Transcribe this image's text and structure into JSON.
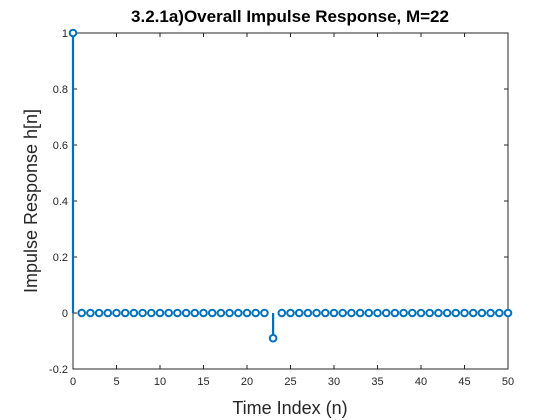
{
  "chart_data": {
    "type": "stem",
    "title": "3.2.1a)Overall Impulse Response, M=22",
    "xlabel": "Time Index (n)",
    "ylabel": "Impulse Response h[n]",
    "xlim": [
      0,
      50
    ],
    "ylim": [
      -0.2,
      1
    ],
    "xticks": [
      0,
      5,
      10,
      15,
      20,
      25,
      30,
      35,
      40,
      45,
      50
    ],
    "xtick_labels": [
      "0",
      "5",
      "10",
      "15",
      "20",
      "25",
      "30",
      "35",
      "40",
      "45",
      "50"
    ],
    "yticks": [
      -0.2,
      0,
      0.2,
      0.4,
      0.6,
      0.8,
      1
    ],
    "ytick_labels": [
      "-0.2",
      "0",
      "0.2",
      "0.4",
      "0.6",
      "0.8",
      "1"
    ],
    "grid": false,
    "box": true,
    "series_color": "#0072BD",
    "x": [
      0,
      1,
      2,
      3,
      4,
      5,
      6,
      7,
      8,
      9,
      10,
      11,
      12,
      13,
      14,
      15,
      16,
      17,
      18,
      19,
      20,
      21,
      22,
      23,
      24,
      25,
      26,
      27,
      28,
      29,
      30,
      31,
      32,
      33,
      34,
      35,
      36,
      37,
      38,
      39,
      40,
      41,
      42,
      43,
      44,
      45,
      46,
      47,
      48,
      49,
      50
    ],
    "y": [
      1,
      0,
      0,
      0,
      0,
      0,
      0,
      0,
      0,
      0,
      0,
      0,
      0,
      0,
      0,
      0,
      0,
      0,
      0,
      0,
      0,
      0,
      0,
      -0.09,
      0,
      0,
      0,
      0,
      0,
      0,
      0,
      0,
      0,
      0,
      0,
      0,
      0,
      0,
      0,
      0,
      0,
      0,
      0,
      0,
      0,
      0,
      0,
      0,
      0,
      0,
      0
    ]
  }
}
